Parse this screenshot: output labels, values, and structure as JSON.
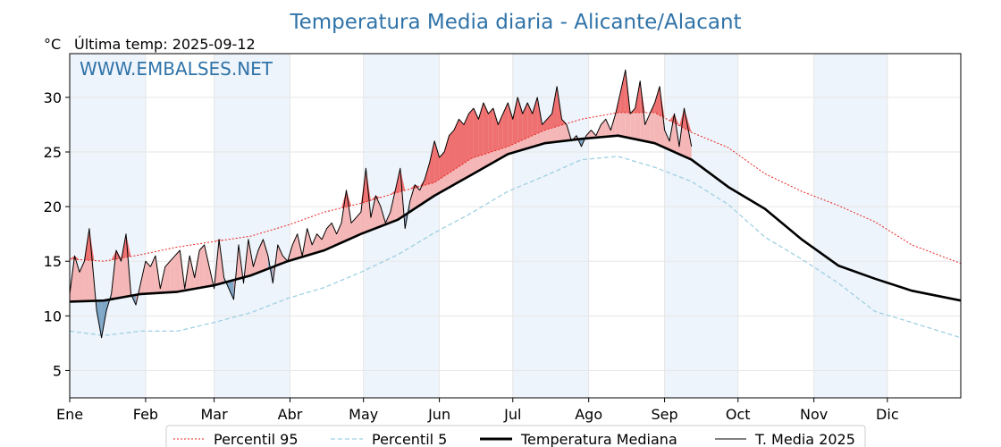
{
  "title": "Temperatura Media diaria - Alicante/Alacant",
  "unit_label": "°C",
  "last_temp_label": "Última temp: 2025-09-12",
  "watermark": "WWW.EMBALSES.NET",
  "colors": {
    "title": "#2f73a8",
    "p95": "#e8231f",
    "p5": "#9ed0e2",
    "median": "#000000",
    "current": "#000000",
    "above_fill": "#f4b6b6",
    "above_fill_strong": "#ef7070",
    "below_fill": "#7fa7c8",
    "month_shade": "#eef4fb"
  },
  "chart_data": {
    "type": "line",
    "title": "Temperatura Media diaria - Alicante/Alacant",
    "ylabel": "°C",
    "xlim_days": [
      1,
      365
    ],
    "ylim": [
      2.5,
      34
    ],
    "yticks": [
      5,
      10,
      15,
      20,
      25,
      30
    ],
    "month_labels": [
      "Ene",
      "Feb",
      "Mar",
      "Abr",
      "May",
      "Jun",
      "Jul",
      "Ago",
      "Sep",
      "Oct",
      "Nov",
      "Dic"
    ],
    "month_start_days": [
      1,
      32,
      60,
      91,
      121,
      152,
      182,
      213,
      244,
      274,
      305,
      335
    ],
    "grid": true,
    "legend_placement": "bottom-center",
    "series": [
      {
        "name": "Percentil 95",
        "style": "dotted",
        "x": [
          1,
          15,
          30,
          45,
          60,
          75,
          90,
          105,
          120,
          135,
          150,
          165,
          180,
          195,
          210,
          225,
          240,
          255,
          270,
          285,
          300,
          315,
          330,
          345,
          365
        ],
        "values": [
          15.2,
          15.0,
          15.6,
          16.3,
          16.8,
          17.3,
          18.3,
          19.5,
          20.3,
          21.3,
          22.2,
          24.4,
          25.5,
          27.0,
          28.0,
          28.6,
          28.6,
          26.8,
          25.4,
          23.0,
          21.4,
          20.1,
          18.6,
          16.5,
          14.8
        ]
      },
      {
        "name": "Percentil 5",
        "style": "dashed",
        "x": [
          1,
          15,
          30,
          45,
          60,
          75,
          90,
          105,
          120,
          135,
          150,
          165,
          180,
          195,
          210,
          225,
          240,
          255,
          270,
          285,
          300,
          315,
          330,
          345,
          365
        ],
        "values": [
          8.6,
          8.2,
          8.6,
          8.6,
          9.4,
          10.3,
          11.6,
          12.6,
          14.0,
          15.6,
          17.6,
          19.4,
          21.4,
          22.8,
          24.3,
          24.6,
          23.6,
          22.3,
          20.2,
          17.2,
          15.2,
          13.0,
          10.4,
          9.4,
          8.0
        ]
      },
      {
        "name": "Temperatura Mediana",
        "style": "solid-thick",
        "x": [
          1,
          15,
          30,
          45,
          60,
          75,
          90,
          105,
          120,
          135,
          150,
          165,
          180,
          195,
          210,
          225,
          240,
          255,
          270,
          285,
          300,
          315,
          330,
          345,
          365
        ],
        "values": [
          11.3,
          11.4,
          12.0,
          12.2,
          12.8,
          13.7,
          15.0,
          16.0,
          17.5,
          18.8,
          21.0,
          22.9,
          24.8,
          25.8,
          26.2,
          26.5,
          25.8,
          24.3,
          21.8,
          19.8,
          17.0,
          14.6,
          13.4,
          12.3,
          11.4
        ]
      },
      {
        "name": "T. Media 2025",
        "style": "solid-thin",
        "x": [
          1,
          3,
          5,
          7,
          9,
          11,
          12,
          14,
          16,
          18,
          20,
          22,
          24,
          26,
          28,
          30,
          32,
          34,
          36,
          38,
          40,
          42,
          44,
          46,
          48,
          50,
          52,
          54,
          56,
          58,
          60,
          62,
          64,
          66,
          68,
          70,
          72,
          74,
          76,
          78,
          80,
          82,
          84,
          86,
          88,
          90,
          92,
          94,
          96,
          98,
          100,
          102,
          104,
          106,
          108,
          110,
          112,
          114,
          116,
          118,
          120,
          122,
          124,
          126,
          128,
          130,
          132,
          134,
          136,
          138,
          140,
          142,
          144,
          146,
          148,
          150,
          152,
          154,
          156,
          158,
          160,
          162,
          164,
          166,
          168,
          170,
          172,
          174,
          176,
          178,
          180,
          182,
          184,
          186,
          188,
          190,
          192,
          194,
          196,
          198,
          200,
          202,
          204,
          206,
          208,
          210,
          212,
          214,
          216,
          218,
          220,
          222,
          224,
          226,
          228,
          230,
          232,
          234,
          236,
          238,
          240,
          242,
          244,
          246,
          248,
          250,
          252,
          255
        ],
        "values": [
          12.0,
          15.5,
          14.0,
          15.0,
          18.0,
          13.0,
          10.5,
          8.0,
          10.5,
          12.0,
          16.0,
          15.0,
          17.5,
          12.0,
          11.0,
          13.0,
          15.0,
          14.5,
          15.5,
          12.5,
          14.5,
          15.0,
          15.5,
          16.0,
          12.5,
          15.5,
          13.5,
          16.0,
          16.5,
          14.5,
          12.5,
          17.0,
          13.5,
          12.5,
          11.5,
          16.5,
          13.0,
          17.0,
          14.5,
          16.0,
          17.0,
          15.5,
          13.0,
          16.5,
          15.5,
          15.0,
          16.5,
          17.5,
          15.5,
          18.0,
          16.5,
          17.5,
          17.0,
          18.0,
          18.5,
          17.5,
          18.5,
          21.5,
          18.5,
          19.0,
          19.5,
          23.5,
          19.0,
          21.0,
          20.0,
          18.5,
          19.5,
          21.5,
          23.5,
          18.0,
          20.5,
          22.0,
          21.5,
          22.5,
          24.0,
          26.0,
          24.5,
          25.0,
          26.5,
          27.0,
          28.0,
          27.5,
          28.5,
          29.0,
          28.0,
          29.5,
          28.5,
          29.0,
          27.5,
          28.5,
          29.5,
          28.0,
          30.0,
          28.5,
          29.5,
          28.5,
          30.0,
          27.5,
          28.0,
          28.5,
          31.0,
          28.0,
          27.5,
          26.0,
          26.5,
          25.5,
          26.5,
          27.0,
          26.5,
          27.5,
          28.0,
          27.0,
          28.5,
          30.5,
          32.5,
          28.5,
          29.0,
          31.5,
          27.5,
          28.5,
          29.5,
          31.0,
          27.0,
          26.0,
          28.5,
          25.5,
          29.0,
          25.5
        ]
      }
    ]
  },
  "legend": {
    "p95": "Percentil 95",
    "p5": "Percentil 5",
    "median": "Temperatura Mediana",
    "current": "T. Media 2025"
  }
}
